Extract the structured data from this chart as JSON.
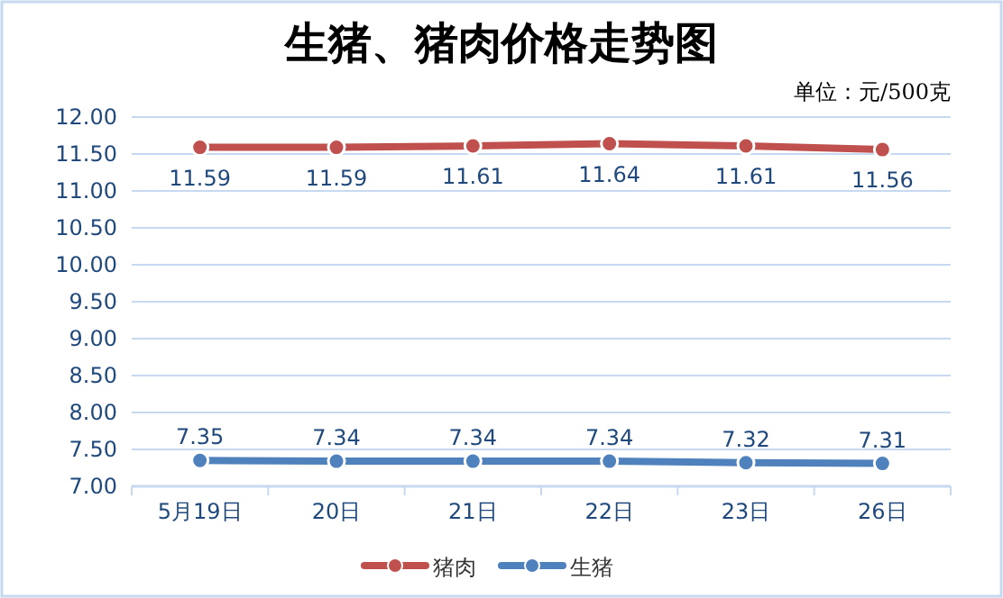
{
  "chart_data": {
    "type": "line",
    "title": "生猪、猪肉价格走势图",
    "annotations": [
      "单位：元/500克"
    ],
    "categories": [
      "5月19日",
      "20日",
      "21日",
      "22日",
      "23日",
      "26日"
    ],
    "series": [
      {
        "name": "猪肉",
        "color": "#c0504d",
        "values": [
          11.59,
          11.59,
          11.61,
          11.64,
          11.61,
          11.56
        ]
      },
      {
        "name": "生猪",
        "color": "#4f81bd",
        "values": [
          7.35,
          7.34,
          7.34,
          7.34,
          7.32,
          7.31
        ]
      }
    ],
    "ylim": [
      7,
      12
    ],
    "yticks": [
      {
        "value": 7,
        "label": "7.00"
      },
      {
        "value": 7.5,
        "label": "7.50"
      },
      {
        "value": 8,
        "label": "8.00"
      },
      {
        "value": 8.5,
        "label": "8.50"
      },
      {
        "value": 9,
        "label": "9.00"
      },
      {
        "value": 9.5,
        "label": "9.50"
      },
      {
        "value": 10,
        "label": "10.00"
      },
      {
        "value": 10.5,
        "label": "10.50"
      },
      {
        "value": 11,
        "label": "11.00"
      },
      {
        "value": 11.5,
        "label": "11.50"
      },
      {
        "value": 12,
        "label": "12.00"
      }
    ],
    "grid": "y",
    "legend": "bottom",
    "marker": "circle",
    "data_labels": true
  }
}
